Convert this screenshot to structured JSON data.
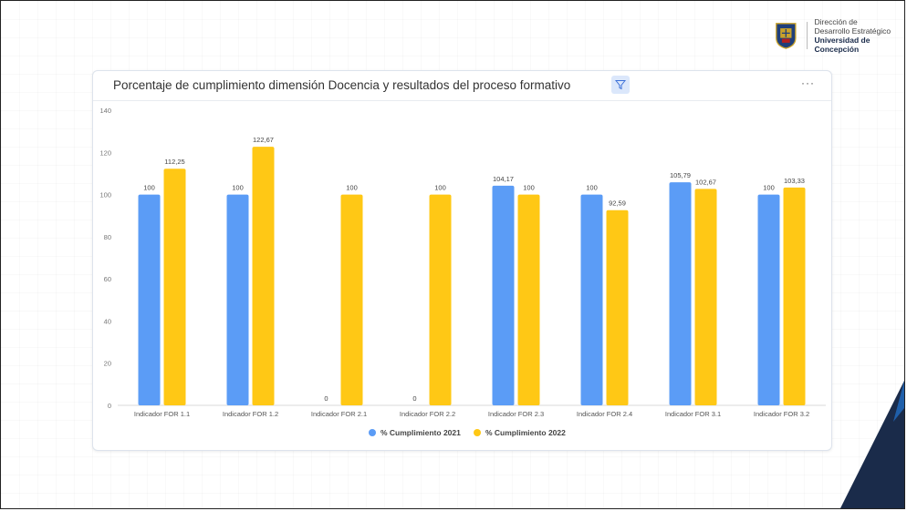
{
  "header": {
    "org_line1": "Dirección de",
    "org_line2": "Desarrollo Estratégico",
    "org_line3": "Universidad de Concepción"
  },
  "card": {
    "title": "Porcentaje de cumplimiento dimensión Docencia y resultados del proceso formativo",
    "filter_icon": "filter-icon",
    "more_label": "···"
  },
  "colors": {
    "series_2021": "#5b9cf6",
    "series_2022": "#ffc815",
    "corner_dark": "#1a2b4a",
    "corner_blue": "#1f5faa"
  },
  "chart_data": {
    "type": "bar",
    "categories": [
      "Indicador FOR 1.1",
      "Indicador FOR 1.2",
      "Indicador FOR 2.1",
      "Indicador FOR 2.2",
      "Indicador FOR 2.3",
      "Indicador FOR 2.4",
      "Indicador FOR 3.1",
      "Indicador FOR 3.2"
    ],
    "series": [
      {
        "name": "% Cumplimiento 2021",
        "values": [
          100,
          100,
          0,
          0,
          104.17,
          100,
          105.79,
          100
        ],
        "labels": [
          "100",
          "100",
          "0",
          "0",
          "104,17",
          "100",
          "105,79",
          "100"
        ]
      },
      {
        "name": "% Cumplimiento 2022",
        "values": [
          112.25,
          122.67,
          100,
          100,
          100,
          92.59,
          102.67,
          103.33
        ],
        "labels": [
          "112,25",
          "122,67",
          "100",
          "100",
          "100",
          "92,59",
          "102,67",
          "103,33"
        ]
      }
    ],
    "y_ticks": [
      "0",
      "20",
      "40",
      "60",
      "80",
      "100",
      "120",
      "140"
    ],
    "ylim": [
      0,
      140
    ],
    "legend_position": "bottom",
    "grid": false
  }
}
